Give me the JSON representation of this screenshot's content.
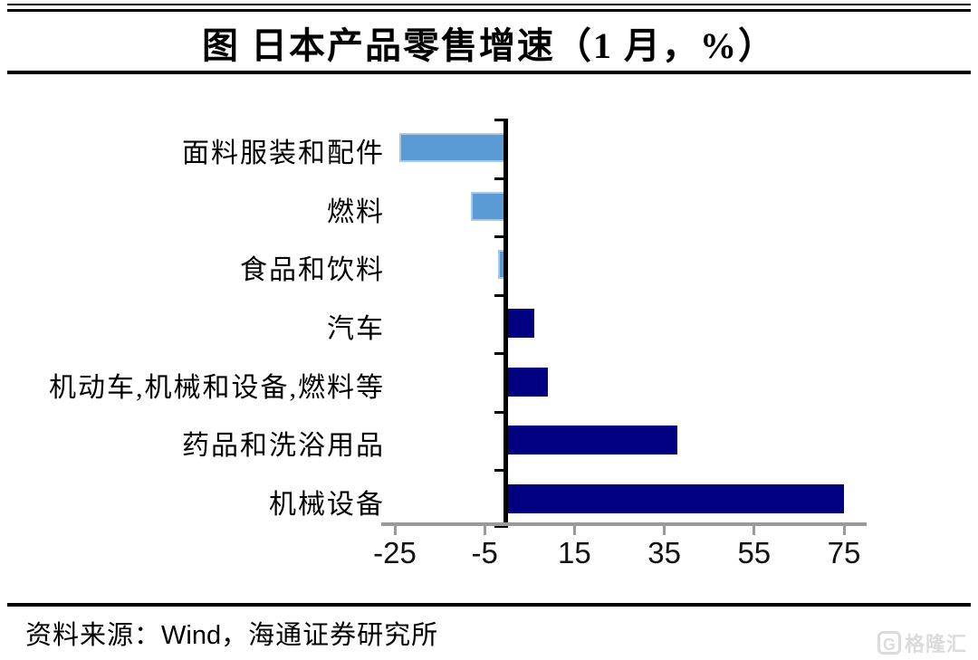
{
  "header": {
    "title": "图  日本产品零售增速（1 月，%）"
  },
  "chart_data": {
    "type": "bar",
    "orientation": "horizontal",
    "title": "图 日本产品零售增速（1 月，%）",
    "categories": [
      "面料服装和配件",
      "燃料",
      "食品和饮料",
      "汽车",
      "机动车,机械和设备,燃料等",
      "药品和洗浴用品",
      "机械设备"
    ],
    "values": [
      -24,
      -8,
      -2,
      6,
      9,
      38,
      75
    ],
    "xlabel": "",
    "ylabel": "",
    "x_ticks": [
      -25,
      -5,
      15,
      35,
      55,
      75
    ],
    "xlim": [
      -28,
      80
    ],
    "grid": false,
    "legend": false,
    "colors": {
      "negative_bar": "#5B9BD5",
      "negative_bar_border": "#A9C7E6",
      "positive_bar": "#000080",
      "value_axis": "#9A9A9A",
      "category_axis": "#000000"
    }
  },
  "footer": {
    "prefix": "资料来源：",
    "source_name": "Wind",
    "suffix": "，海通证券研究所"
  },
  "watermark": {
    "logo": "G",
    "text": "格隆汇"
  }
}
